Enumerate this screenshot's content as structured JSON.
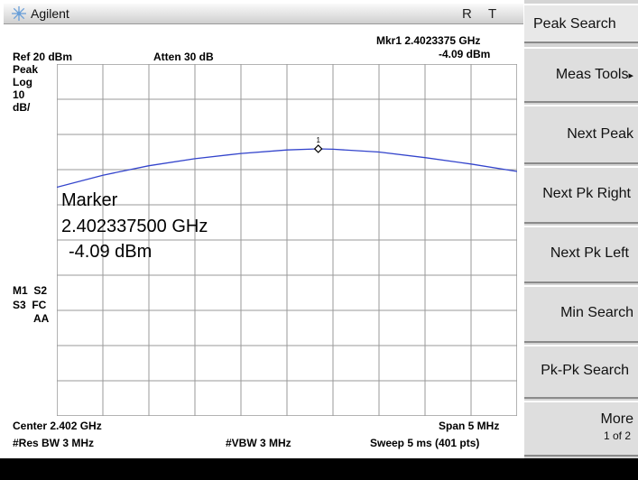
{
  "title_bar": {
    "brand": "Agilent",
    "indicator_r": "R",
    "indicator_t": "T"
  },
  "header": {
    "marker_readout": "Mkr1 2.4023375 GHz",
    "marker_level": "-4.09 dBm",
    "ref_level": "Ref 20 dBm",
    "attenuation": "Atten 30 dB"
  },
  "left_labels": {
    "detector": "Peak",
    "scale_type": "Log",
    "scale_value": "10",
    "scale_unit": "dB/",
    "m1s2": "M1  S2",
    "s3fc": "S3  FC",
    "aa": "AA"
  },
  "marker_box": {
    "label": "Marker",
    "frequency": "2.402337500 GHz",
    "level": "-4.09 dBm"
  },
  "marker_number": "1",
  "footer": {
    "center": "Center 2.402 GHz",
    "span": "Span 5 MHz",
    "res_bw": "#Res BW 3 MHz",
    "vbw": "#VBW 3 MHz",
    "sweep": "Sweep 5 ms (401 pts)"
  },
  "softkeys": {
    "title": "Peak Search",
    "meas_tools": "Meas Tools",
    "meas_tools_arrow": "▸",
    "next_peak": "Next Peak",
    "next_pk_right": "Next Pk Right",
    "next_pk_left": "Next Pk Left",
    "min_search": "Min Search",
    "pk_pk_search": "Pk-Pk Search",
    "more": "More",
    "more_page": "1 of 2"
  },
  "colors": {
    "trace": "#3344cc",
    "grid": "#9a9a9a",
    "marker": "#000000",
    "logo": "#6a9fd8"
  },
  "chart_data": {
    "type": "line",
    "x_center_ghz": 2.402,
    "span_mhz": 5,
    "ref_level_dbm": 20,
    "scale_db_per_div": 10,
    "divisions": 10,
    "series": [
      {
        "x_mhz_offset": [
          -2.5,
          -2.0,
          -1.5,
          -1.0,
          -0.5,
          0.0,
          0.34,
          0.5,
          1.0,
          1.5,
          2.0,
          2.5
        ],
        "values": [
          -15.0,
          -11.6,
          -8.9,
          -6.9,
          -5.4,
          -4.4,
          -4.09,
          -4.2,
          -5.0,
          -6.6,
          -8.4,
          -10.5
        ]
      }
    ],
    "marker": {
      "x_mhz_offset": 0.34,
      "value": -4.09
    },
    "grid": true
  }
}
